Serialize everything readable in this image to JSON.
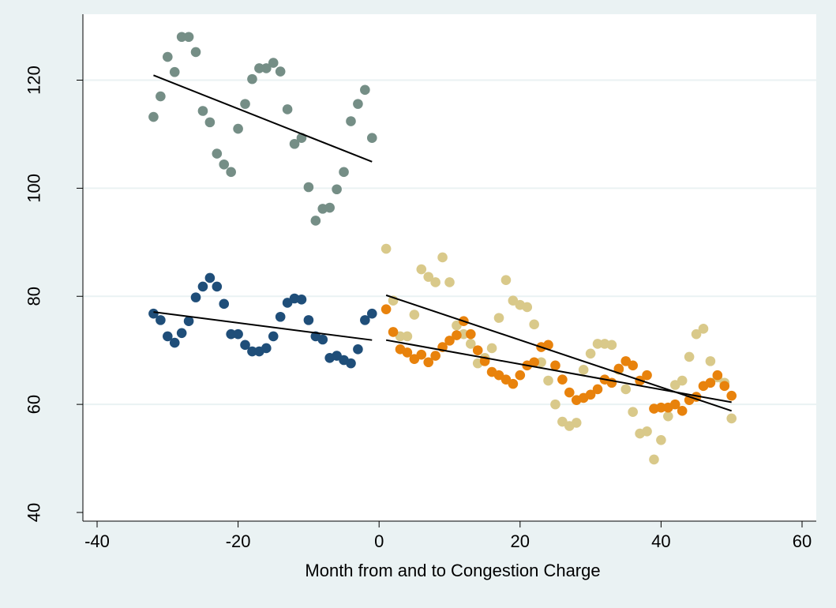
{
  "chart_data": {
    "type": "scatter",
    "title": "",
    "xlabel": "Month from and to Congestion Charge",
    "ylabel": "",
    "xlim": [
      -42,
      62
    ],
    "ylim": [
      38,
      131
    ],
    "xticks": [
      -40,
      -20,
      0,
      20,
      40,
      60
    ],
    "yticks": [
      40,
      60,
      80,
      100,
      120
    ],
    "grid": true,
    "legend": "none",
    "colors": {
      "background": "#eaf2f3",
      "plot_area": "#ffffff",
      "fit_line": "#000000"
    },
    "series": [
      {
        "color": "#758e86",
        "x": [
          -32,
          -31,
          -30,
          -29,
          -28,
          -27,
          -26,
          -25,
          -24,
          -23,
          -22,
          -21,
          -20,
          -19,
          -18,
          -17,
          -16,
          -15,
          -14,
          -13,
          -12,
          -11,
          -10,
          -9,
          -8,
          -7,
          -6,
          -5,
          -4,
          -3,
          -2,
          -1
        ],
        "y": [
          113.2,
          117,
          124.3,
          121.5,
          128,
          128,
          125.2,
          114.3,
          112.2,
          106.4,
          104.4,
          103,
          111,
          115.6,
          120.2,
          122.2,
          122.2,
          123.2,
          121.6,
          114.6,
          108.2,
          109.3,
          100.2,
          94,
          96.2,
          96.4,
          99.8,
          103,
          112.4,
          115.6,
          118.2,
          109.3
        ],
        "fit": [
          [
            -32,
            120.9
          ],
          [
            -1,
            104.9
          ]
        ]
      },
      {
        "color": "#1f4e79",
        "x": [
          -32,
          -31,
          -30,
          -29,
          -28,
          -27,
          -26,
          -25,
          -24,
          -23,
          -22,
          -21,
          -20,
          -19,
          -18,
          -17,
          -16,
          -15,
          -14,
          -13,
          -12,
          -11,
          -10,
          -9,
          -8,
          -7,
          -6,
          -5,
          -4,
          -3,
          -2,
          -1
        ],
        "y": [
          76.8,
          75.6,
          72.6,
          71.4,
          73.2,
          75.4,
          79.8,
          81.8,
          83.4,
          81.8,
          78.6,
          73,
          73,
          71,
          69.8,
          69.8,
          70.4,
          72.6,
          76.2,
          78.8,
          79.6,
          79.4,
          75.6,
          72.6,
          72,
          68.6,
          69,
          68.2,
          67.6,
          70.2,
          75.6,
          76.8
        ],
        "fit": [
          [
            -32,
            77.1
          ],
          [
            -1,
            71.9
          ]
        ]
      },
      {
        "color": "#d9c98a",
        "x": [
          1,
          2,
          3,
          4,
          5,
          6,
          7,
          8,
          9,
          10,
          11,
          12,
          13,
          14,
          15,
          16,
          17,
          18,
          19,
          20,
          21,
          22,
          23,
          24,
          25,
          26,
          27,
          28,
          29,
          30,
          31,
          32,
          33,
          34,
          35,
          36,
          37,
          38,
          39,
          40,
          41,
          42,
          43,
          44,
          45,
          46,
          47,
          48,
          49,
          50
        ],
        "y": [
          88.8,
          79.2,
          72.6,
          72.6,
          76.6,
          85,
          83.6,
          82.6,
          87.2,
          82.6,
          74.6,
          73,
          71.2,
          67.6,
          68.6,
          70.4,
          76,
          83,
          79.2,
          78.4,
          78,
          74.8,
          67.8,
          64.4,
          60,
          56.8,
          56,
          56.6,
          66.4,
          69.4,
          71.2,
          71.2,
          71,
          66.4,
          62.8,
          58.6,
          54.6,
          55,
          49.8,
          53.4,
          57.8,
          63.6,
          64.4,
          68.8,
          73,
          74,
          68,
          65,
          64,
          57.4
        ],
        "fit": [
          [
            1,
            80.2
          ],
          [
            50,
            58.8
          ]
        ]
      },
      {
        "color": "#e8820c",
        "x": [
          1,
          2,
          3,
          4,
          5,
          6,
          7,
          8,
          9,
          10,
          11,
          12,
          13,
          14,
          15,
          16,
          17,
          18,
          19,
          20,
          21,
          22,
          23,
          24,
          25,
          26,
          27,
          28,
          29,
          30,
          31,
          32,
          33,
          34,
          35,
          36,
          37,
          38,
          39,
          40,
          41,
          42,
          43,
          44,
          45,
          46,
          47,
          48,
          49,
          50
        ],
        "y": [
          77.6,
          73.4,
          70.2,
          69.6,
          68.4,
          69.2,
          67.8,
          69,
          70.6,
          71.8,
          72.8,
          75.4,
          73,
          70,
          68,
          66,
          65.4,
          64.6,
          63.8,
          65.4,
          67.2,
          67.8,
          70.6,
          71,
          67.2,
          64.6,
          62.2,
          60.8,
          61.2,
          61.8,
          62.8,
          64.6,
          64,
          66.6,
          68,
          67.2,
          64.4,
          65.4,
          59.2,
          59.4,
          59.4,
          60,
          58.8,
          60.8,
          61.4,
          63.4,
          64,
          65.4,
          63.4,
          61.6
        ],
        "fit": [
          [
            1,
            71.9
          ],
          [
            50,
            60.4
          ]
        ]
      }
    ]
  }
}
